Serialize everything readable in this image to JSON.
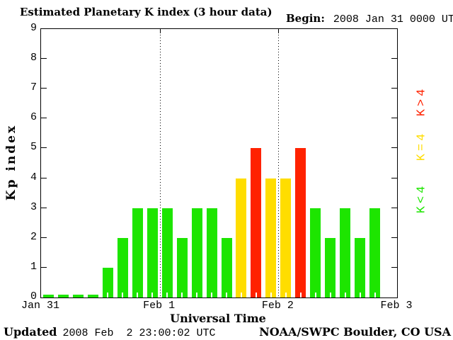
{
  "title": "Estimated Planetary K index (3 hour data)",
  "begin_label": "Begin:",
  "begin_value": "2008 Jan 31 0000 UTC",
  "updated_label": "Updated",
  "updated_value": "2008 Feb  2 23:00:02 UTC",
  "credit": "NOAA/SWPC Boulder, CO USA",
  "chart_data": {
    "type": "bar",
    "title": "Estimated Planetary K index (3 hour data)",
    "xlabel": "Universal Time",
    "ylabel": "Kp index",
    "ylim": [
      0,
      9
    ],
    "y_tick_labels": [
      "0",
      "1",
      "2",
      "3",
      "4",
      "5",
      "6",
      "7",
      "8",
      "9"
    ],
    "x_tick_labels": [
      "Jan 31",
      "Feb 1",
      "Feb 2",
      "Feb 3"
    ],
    "begin": "2008 Jan 31 0000 UTC",
    "bin_hours": 3,
    "slots_total": 24,
    "bins_per_day": 8,
    "values": [
      0,
      0,
      0,
      0,
      1,
      2,
      3,
      3,
      3,
      2,
      3,
      3,
      2,
      4,
      5,
      4,
      4,
      5,
      3,
      2,
      3,
      2,
      3
    ],
    "grid": "dotted vertical lines at day boundaries Feb 1 and Feb 2",
    "colors": {
      "low": "#1de500",
      "mid": "#ffdd00",
      "high": "#ff2200"
    },
    "legend": [
      {
        "label": "K>4",
        "color": "#ff2200"
      },
      {
        "label": "K=4",
        "color": "#ffdd00"
      },
      {
        "label": "K<4",
        "color": "#1de500"
      }
    ],
    "legend_position": "right, rotated 90deg"
  }
}
